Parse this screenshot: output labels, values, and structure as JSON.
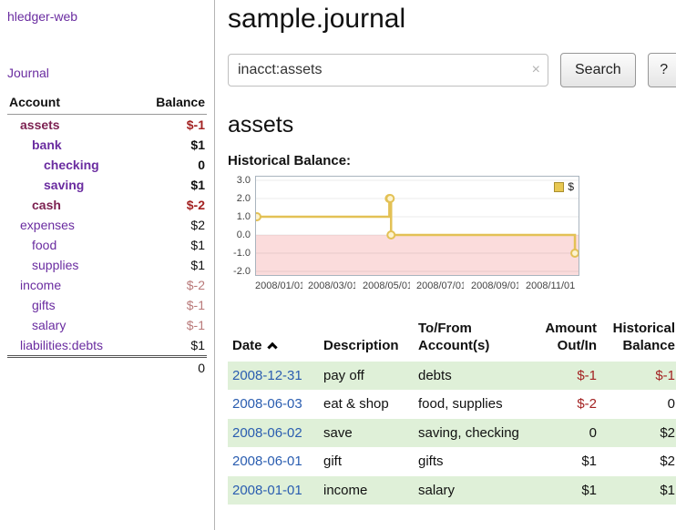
{
  "colors": {
    "link_purple": "#6a2ca0",
    "visited_purple": "#7d2252",
    "negative_strong": "#a32222",
    "negative_muted": "#b97979",
    "date_link_blue": "#2a5db0",
    "row_green": "#dff0d8",
    "chart_line_gold": "#e3c155",
    "chart_negative_region": "#fbdcdc"
  },
  "app": {
    "title": "hledger-web",
    "nav_journal": "Journal"
  },
  "sidebar": {
    "header": {
      "account": "Account",
      "balance": "Balance"
    },
    "accounts": [
      {
        "name": "assets",
        "balance": "$-1"
      },
      {
        "name": "bank",
        "balance": "$1"
      },
      {
        "name": "checking",
        "balance": "0"
      },
      {
        "name": "saving",
        "balance": "$1"
      },
      {
        "name": "cash",
        "balance": "$-2"
      },
      {
        "name": "expenses",
        "balance": "$2"
      },
      {
        "name": "food",
        "balance": "$1"
      },
      {
        "name": "supplies",
        "balance": "$1"
      },
      {
        "name": "income",
        "balance": "$-2"
      },
      {
        "name": "gifts",
        "balance": "$-1"
      },
      {
        "name": "salary",
        "balance": "$-1"
      },
      {
        "name": "liabilities:debts",
        "balance": "$1"
      }
    ],
    "total": "0"
  },
  "main": {
    "title": "sample.journal",
    "search": {
      "value": "inacct:assets",
      "clear_icon": "×",
      "button_label": "Search",
      "help_label": "?"
    },
    "account_heading": "assets",
    "chart_title": "Historical Balance:"
  },
  "chart_data": {
    "type": "line",
    "title": "Historical Balance:",
    "series": [
      {
        "name": "$",
        "style": "step",
        "points": [
          {
            "date": "2008-01-01",
            "value": 1
          },
          {
            "date": "2008-06-01",
            "value": 2
          },
          {
            "date": "2008-06-02",
            "value": 2
          },
          {
            "date": "2008-06-03",
            "value": 0
          },
          {
            "date": "2008-12-31",
            "value": -1
          }
        ]
      }
    ],
    "ylim": [
      -2.0,
      3.0
    ],
    "y_ticks": [
      "3.0",
      "2.0",
      "1.0",
      "0.0",
      "-1.0",
      "-2.0"
    ],
    "x_ticks": [
      "2008/01/01",
      "2008/03/01",
      "2008/05/01",
      "2008/07/01",
      "2008/09/01",
      "2008/11/01"
    ],
    "x_range": [
      "2008-01-01",
      "2009-01-01"
    ],
    "legend": {
      "label": "$",
      "position": "top-right"
    },
    "grid": true,
    "line_color": "#e3c155",
    "negative_region_color": "#fbdcdc"
  },
  "register": {
    "headers": {
      "date": "Date",
      "description": "Description",
      "accounts": "To/From Account(s)",
      "amount": "Amount Out/In",
      "balance": "Historical Balance"
    },
    "rows": [
      {
        "date": "2008-12-31",
        "description": "pay off",
        "accounts": "debts",
        "amount": "$-1",
        "balance": "$-1"
      },
      {
        "date": "2008-06-03",
        "description": "eat & shop",
        "accounts": "food, supplies",
        "amount": "$-2",
        "balance": "0"
      },
      {
        "date": "2008-06-02",
        "description": "save",
        "accounts": "saving, checking",
        "amount": "0",
        "balance": "$2"
      },
      {
        "date": "2008-06-01",
        "description": "gift",
        "accounts": "gifts",
        "amount": "$1",
        "balance": "$2"
      },
      {
        "date": "2008-01-01",
        "description": "income",
        "accounts": "salary",
        "amount": "$1",
        "balance": "$1"
      }
    ]
  }
}
